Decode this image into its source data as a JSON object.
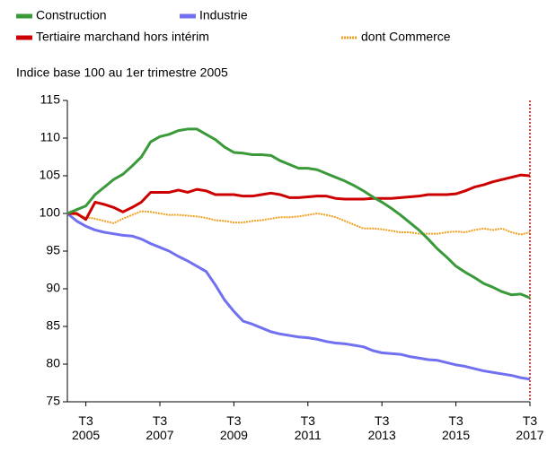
{
  "chart_data": {
    "type": "line",
    "subtitle": "Indice base 100 au 1er trimestre 2005",
    "categories": [
      null,
      null,
      "T3 2005",
      null,
      null,
      null,
      null,
      null,
      null,
      null,
      "T3 2007",
      null,
      null,
      null,
      null,
      null,
      null,
      null,
      "T3 2009",
      null,
      null,
      null,
      null,
      null,
      null,
      null,
      "T3 2011",
      null,
      null,
      null,
      null,
      null,
      null,
      null,
      "T3 2013",
      null,
      null,
      null,
      null,
      null,
      null,
      null,
      "T3 2015",
      null,
      null,
      null,
      null,
      null,
      null,
      null,
      "T3 2017"
    ],
    "series": [
      {
        "name": "Construction",
        "color": "#3a9a3a",
        "style": "solid",
        "values": [
          100,
          100.5,
          101,
          102.5,
          103.5,
          104.5,
          105.2,
          106.3,
          107.5,
          109.5,
          110.2,
          110.5,
          111,
          111.2,
          111.2,
          110.5,
          109.8,
          108.8,
          108.1,
          108,
          107.8,
          107.8,
          107.7,
          107,
          106.5,
          106,
          106,
          105.8,
          105.3,
          104.8,
          104.3,
          103.7,
          103,
          102.2,
          101.5,
          100.7,
          99.8,
          98.8,
          97.8,
          96.6,
          95.3,
          94.2,
          93,
          92.2,
          91.5,
          90.7,
          90.2,
          89.6,
          89.2,
          89.3,
          88.8
        ]
      },
      {
        "name": "Industrie",
        "color": "#7070f0",
        "style": "solid",
        "values": [
          100,
          99,
          98.3,
          97.8,
          97.5,
          97.3,
          97.1,
          97,
          96.6,
          96,
          95.5,
          95,
          94.3,
          93.7,
          93,
          92.3,
          90.5,
          88.5,
          87,
          85.7,
          85.3,
          84.8,
          84.3,
          84,
          83.8,
          83.6,
          83.5,
          83.3,
          83,
          82.8,
          82.7,
          82.5,
          82.3,
          81.8,
          81.5,
          81.4,
          81.3,
          81,
          80.8,
          80.6,
          80.5,
          80.2,
          79.9,
          79.7,
          79.4,
          79.1,
          78.9,
          78.7,
          78.5,
          78.2,
          78
        ]
      },
      {
        "name": "Tertiaire marchand hors intérim",
        "color": "#cc0000",
        "style": "solid",
        "values": [
          100,
          100,
          99.2,
          101.5,
          101.2,
          100.8,
          100.2,
          100.8,
          101.5,
          102.8,
          102.8,
          102.8,
          103.1,
          102.8,
          103.2,
          103,
          102.5,
          102.5,
          102.5,
          102.3,
          102.3,
          102.5,
          102.7,
          102.5,
          102.1,
          102.1,
          102.2,
          102.3,
          102.3,
          102,
          101.9,
          101.9,
          101.9,
          102,
          102,
          102,
          102.1,
          102.2,
          102.3,
          102.5,
          102.5,
          102.5,
          102.6,
          103,
          103.5,
          103.8,
          104.2,
          104.5,
          104.8,
          105.1,
          105
        ]
      },
      {
        "name": "dont Commerce",
        "color": "#f0a020",
        "style": "dotted",
        "values": [
          100,
          99.8,
          99.5,
          99.3,
          99,
          98.7,
          99.3,
          99.8,
          100.3,
          100.2,
          100,
          99.8,
          99.8,
          99.7,
          99.6,
          99.4,
          99.1,
          99,
          98.8,
          98.8,
          99,
          99.1,
          99.3,
          99.5,
          99.5,
          99.6,
          99.8,
          100,
          99.8,
          99.5,
          99,
          98.5,
          98,
          98,
          97.9,
          97.7,
          97.5,
          97.5,
          97.3,
          97.3,
          97.3,
          97.5,
          97.6,
          97.5,
          97.8,
          98,
          97.8,
          98,
          97.5,
          97.2,
          97.5
        ]
      }
    ],
    "ylim": [
      75,
      115
    ],
    "yticks": [
      75,
      80,
      85,
      90,
      95,
      100,
      105,
      110,
      115
    ],
    "grid": false
  }
}
